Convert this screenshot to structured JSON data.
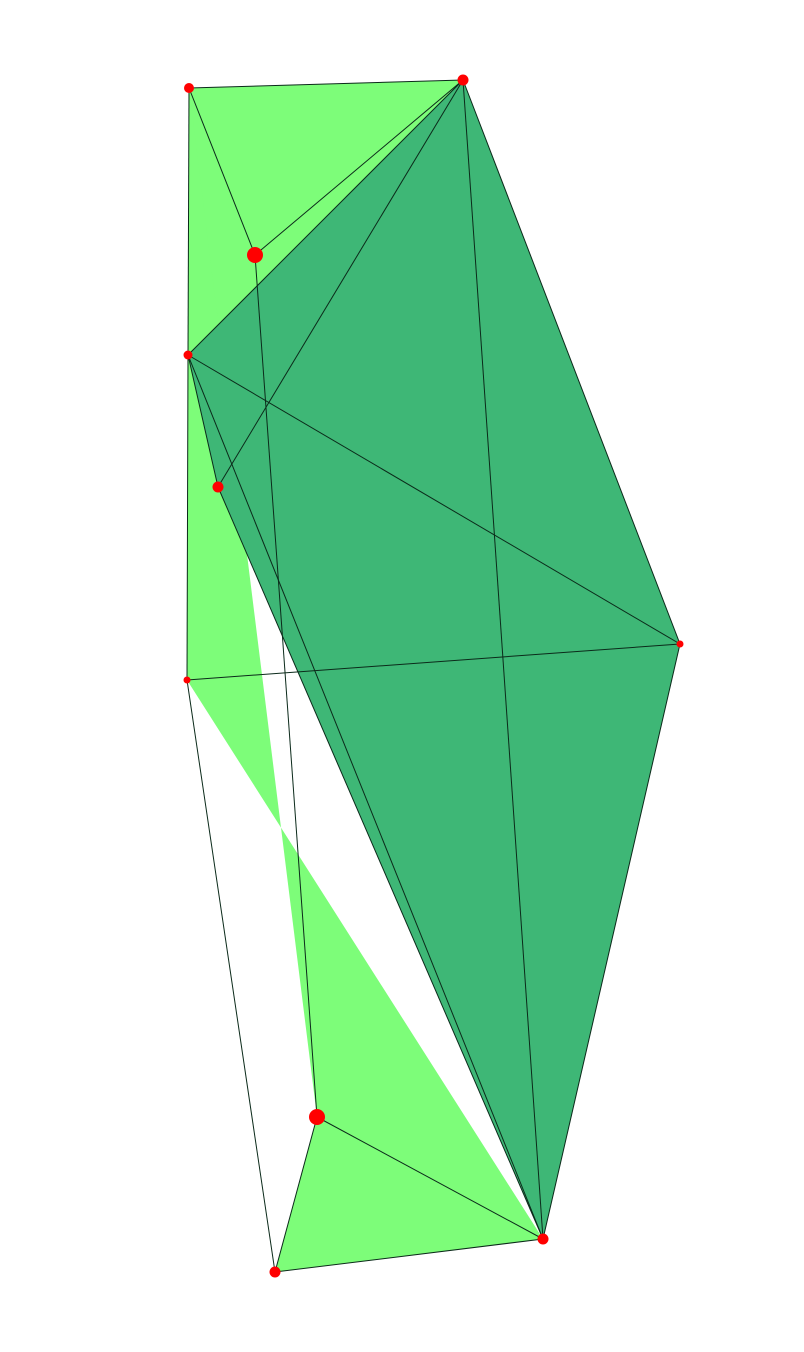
{
  "diagram": {
    "kind": "3d-polyhedron-wireframe",
    "colors": {
      "background": "#ffffff",
      "face_light": "#7dfd79",
      "face_dark": "#3eb776",
      "edge": "#0b2a1a",
      "vertex": "#ff0000"
    },
    "vertices": [
      {
        "id": "v1"
      },
      {
        "id": "v2"
      },
      {
        "id": "v3"
      },
      {
        "id": "v4"
      },
      {
        "id": "v5"
      },
      {
        "id": "v6"
      },
      {
        "id": "v7"
      },
      {
        "id": "v8"
      },
      {
        "id": "v9"
      },
      {
        "id": "v10"
      },
      {
        "id": "v11"
      }
    ],
    "faces": [
      {
        "id": "f1",
        "shade": "light",
        "vertices": [
          "v1",
          "v2",
          "v4"
        ]
      },
      {
        "id": "f2",
        "shade": "light",
        "vertices": [
          "v1",
          "v4",
          "v6",
          "v10",
          "v11",
          "v9"
        ]
      },
      {
        "id": "f3",
        "shade": "dark",
        "vertices": [
          "v2",
          "v7",
          "v10",
          "v5",
          "v4"
        ]
      }
    ],
    "edges": [
      [
        "v1",
        "v2"
      ],
      [
        "v1",
        "v4"
      ],
      [
        "v1",
        "v3"
      ],
      [
        "v3",
        "v2"
      ],
      [
        "v2",
        "v4"
      ],
      [
        "v2",
        "v5"
      ],
      [
        "v2",
        "v7"
      ],
      [
        "v2",
        "v10"
      ],
      [
        "v4",
        "v7"
      ],
      [
        "v4",
        "v6"
      ],
      [
        "v4",
        "v10"
      ],
      [
        "v4",
        "v5"
      ],
      [
        "v5",
        "v10"
      ],
      [
        "v6",
        "v7"
      ],
      [
        "v6",
        "v11"
      ],
      [
        "v7",
        "v10"
      ],
      [
        "v3",
        "v9"
      ],
      [
        "v9",
        "v10"
      ],
      [
        "v9",
        "v11"
      ],
      [
        "v11",
        "v10"
      ]
    ]
  }
}
